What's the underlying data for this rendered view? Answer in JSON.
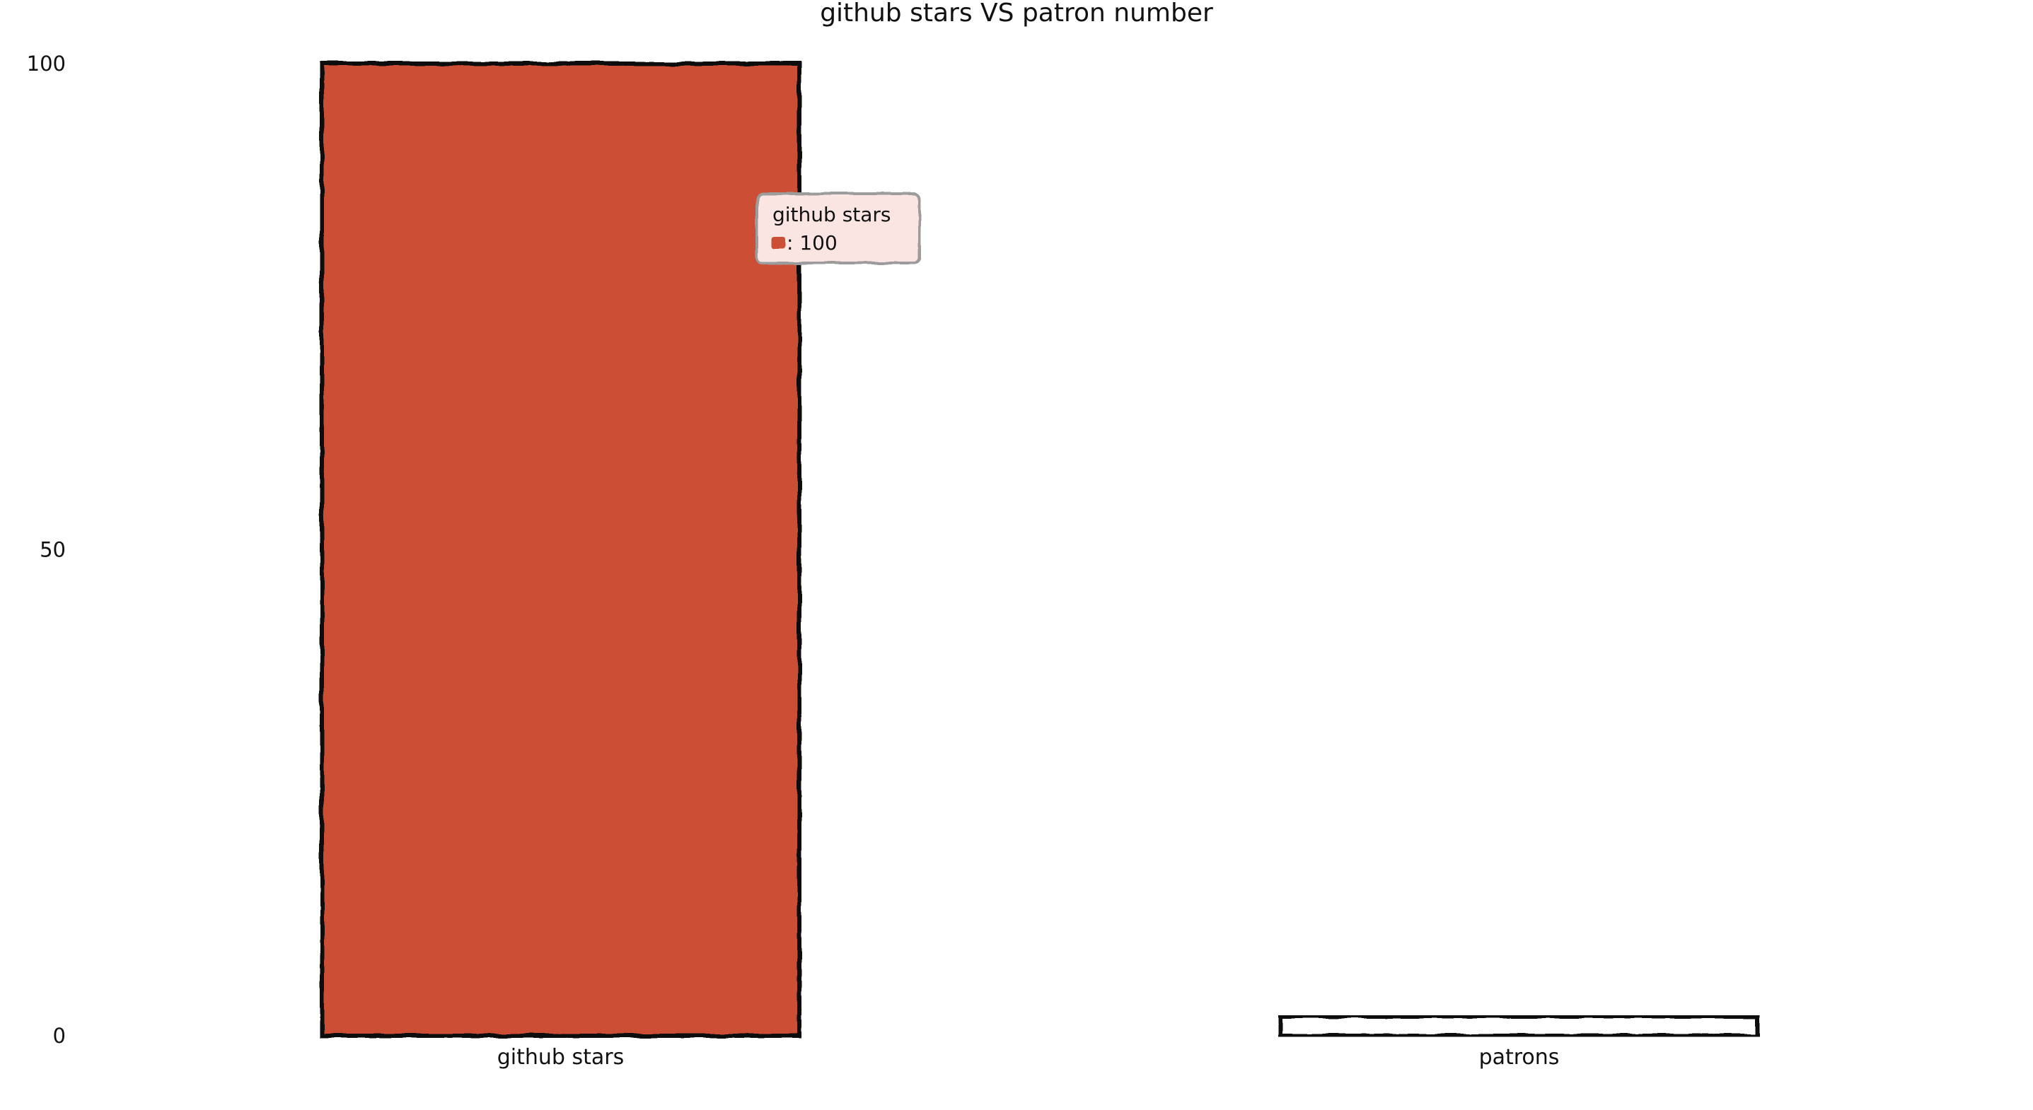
{
  "chart_data": {
    "type": "bar",
    "title": "github stars VS patron number",
    "xlabel": "",
    "ylabel": "",
    "categories": [
      "github stars",
      "patrons"
    ],
    "values": [
      100,
      2
    ],
    "ylim": [
      0,
      100
    ],
    "yticks": [
      0,
      50,
      100
    ],
    "grid": false,
    "bar_colors": [
      "#cc5035",
      "#ffffff"
    ],
    "tooltip": {
      "title": "github stars",
      "value_text": ": 100",
      "color": "#cc5035"
    }
  }
}
